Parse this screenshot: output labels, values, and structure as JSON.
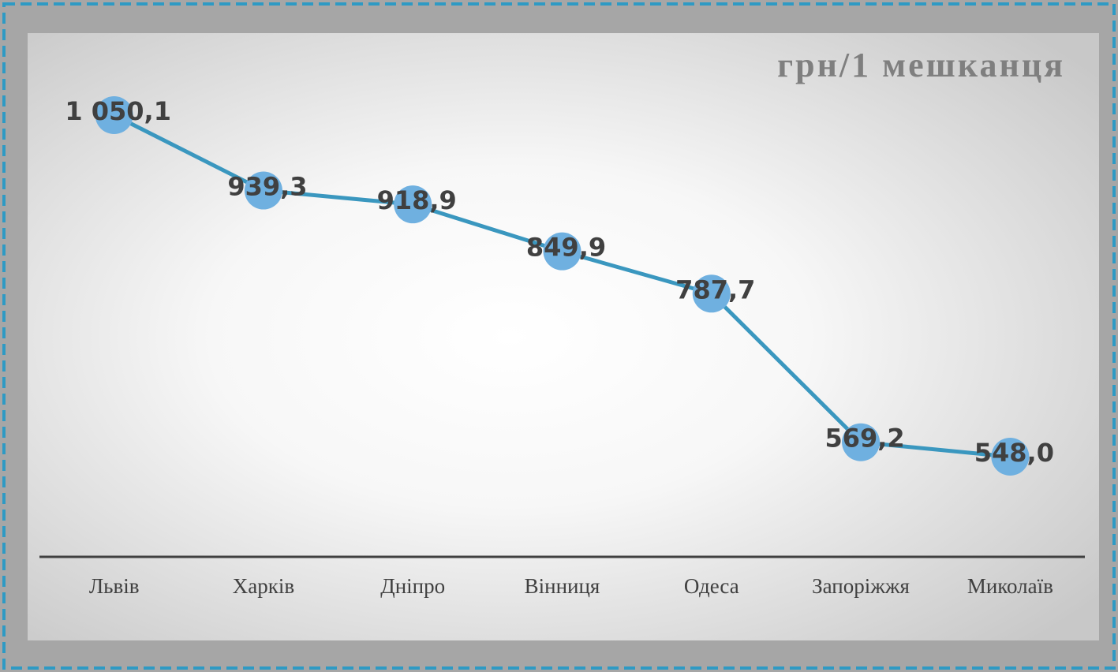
{
  "chart_data": {
    "type": "line",
    "title": "грн/1 мешканця",
    "categories": [
      "Львів",
      "Харків",
      "Дніпро",
      "Вінниця",
      "Одеса",
      "Запоріжжя",
      "Миколаїв"
    ],
    "values": [
      1050.1,
      939.3,
      918.9,
      849.9,
      787.7,
      569.2,
      548.0
    ],
    "value_labels": [
      "1 050,1",
      "939,3",
      "918,9",
      "849,9",
      "787,7",
      "569,2",
      "548,0"
    ],
    "color": "#3a97bf",
    "marker_color": "#6fb0e0"
  }
}
